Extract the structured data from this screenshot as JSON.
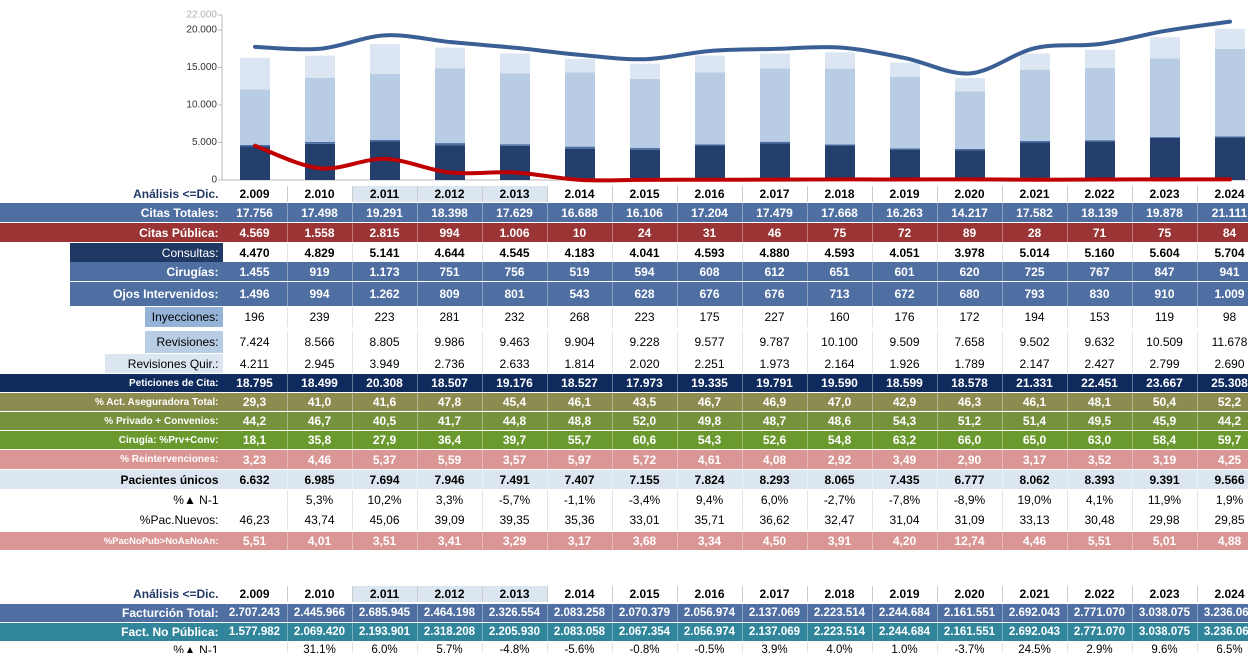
{
  "chart_data": {
    "type": "bar",
    "stacked": true,
    "ylim": [
      0,
      22000
    ],
    "yticks": [
      0,
      {
        "value": 5000,
        "label": "5.000"
      },
      {
        "value": 10000,
        "label": "10.000"
      },
      {
        "value": 15000,
        "label": "15.000"
      },
      {
        "value": 20000,
        "label": "20.000"
      },
      {
        "value": 22000,
        "label": "22.000"
      }
    ],
    "grid": false,
    "series": [
      {
        "color": "#243f6b",
        "values": [
          4470,
          4829,
          5141,
          4644,
          4545,
          4183,
          4041,
          4593,
          4880,
          4593,
          4051,
          3978,
          5014,
          5160,
          5604,
          5704
        ]
      },
      {
        "color": "#4a6ea8",
        "values": [
          196,
          239,
          223,
          281,
          232,
          268,
          223,
          175,
          227,
          160,
          176,
          172,
          194,
          153,
          119,
          98
        ]
      },
      {
        "color": "#b8cce4",
        "values": [
          7424,
          8566,
          8805,
          9986,
          9463,
          9904,
          9228,
          9577,
          9787,
          10100,
          9509,
          7658,
          9502,
          9632,
          10509,
          11678
        ]
      },
      {
        "color": "#dce6f2",
        "values": [
          4211,
          2945,
          3949,
          2736,
          2633,
          1814,
          2020,
          2251,
          1973,
          2164,
          1926,
          1789,
          2147,
          2427,
          2799,
          2690
        ]
      },
      {
        "type": "line",
        "color": "#3a5f94",
        "values": [
          17756,
          17498,
          19291,
          18398,
          17629,
          16688,
          16106,
          17204,
          17479,
          17668,
          16263,
          14217,
          17582,
          18139,
          19878,
          21111
        ]
      },
      {
        "type": "line",
        "color": "#c00000",
        "values": [
          4569,
          1558,
          2815,
          994,
          1006,
          10,
          24,
          31,
          46,
          75,
          72,
          89,
          28,
          71,
          75,
          84
        ]
      }
    ]
  },
  "table1": {
    "header": "Análisis <=Dic.",
    "years": [
      "2.009",
      "2.010",
      "2.011",
      "2.012",
      "2.013",
      "2.014",
      "2.015",
      "2.016",
      "2.017",
      "2.018",
      "2.019",
      "2.020",
      "2.021",
      "2.022",
      "2.023",
      "2.024"
    ],
    "rows": [
      {
        "label": "Citas Totales:",
        "cells": [
          "17.756",
          "17.498",
          "19.291",
          "18.398",
          "17.629",
          "16.688",
          "16.106",
          "17.204",
          "17.479",
          "17.668",
          "16.263",
          "14.217",
          "17.582",
          "18.139",
          "19.878",
          "21.111"
        ]
      },
      {
        "label": "Citas Pública:",
        "cells": [
          "4.569",
          "1.558",
          "2.815",
          "994",
          "1.006",
          "10",
          "24",
          "31",
          "46",
          "75",
          "72",
          "89",
          "28",
          "71",
          "75",
          "84"
        ]
      },
      {
        "label": "Consultas:",
        "cells": [
          "4.470",
          "4.829",
          "5.141",
          "4.644",
          "4.545",
          "4.183",
          "4.041",
          "4.593",
          "4.880",
          "4.593",
          "4.051",
          "3.978",
          "5.014",
          "5.160",
          "5.604",
          "5.704"
        ]
      },
      {
        "label": "Cirugías:",
        "cells": [
          "1.455",
          "919",
          "1.173",
          "751",
          "756",
          "519",
          "594",
          "608",
          "612",
          "651",
          "601",
          "620",
          "725",
          "767",
          "847",
          "941"
        ]
      },
      {
        "label": "Ojos Intervenidos:",
        "cells": [
          "1.496",
          "994",
          "1.262",
          "809",
          "801",
          "543",
          "628",
          "676",
          "676",
          "713",
          "672",
          "680",
          "793",
          "830",
          "910",
          "1.009"
        ]
      },
      {
        "label": "Inyecciones:",
        "cells": [
          "196",
          "239",
          "223",
          "281",
          "232",
          "268",
          "223",
          "175",
          "227",
          "160",
          "176",
          "172",
          "194",
          "153",
          "119",
          "98"
        ]
      },
      {
        "label": "Revisiones:",
        "cells": [
          "7.424",
          "8.566",
          "8.805",
          "9.986",
          "9.463",
          "9.904",
          "9.228",
          "9.577",
          "9.787",
          "10.100",
          "9.509",
          "7.658",
          "9.502",
          "9.632",
          "10.509",
          "11.678"
        ]
      },
      {
        "label": "Revisiones Quir.:",
        "cells": [
          "4.211",
          "2.945",
          "3.949",
          "2.736",
          "2.633",
          "1.814",
          "2.020",
          "2.251",
          "1.973",
          "2.164",
          "1.926",
          "1.789",
          "2.147",
          "2.427",
          "2.799",
          "2.690"
        ]
      },
      {
        "label": "Peticiones de Cita:",
        "cells": [
          "18.795",
          "18.499",
          "20.308",
          "18.507",
          "19.176",
          "18.527",
          "17.973",
          "19.335",
          "19.791",
          "19.590",
          "18.599",
          "18.578",
          "21.331",
          "22.451",
          "23.667",
          "25.308"
        ]
      },
      {
        "label": "% Act. Aseguradora Total:",
        "cells": [
          "29,3",
          "41,0",
          "41,6",
          "47,8",
          "45,4",
          "46,1",
          "43,5",
          "46,7",
          "46,9",
          "47,0",
          "42,9",
          "46,3",
          "46,1",
          "48,1",
          "50,4",
          "52,2"
        ]
      },
      {
        "label": "% Privado + Convenios:",
        "cells": [
          "44,2",
          "46,7",
          "40,5",
          "41,7",
          "44,8",
          "48,8",
          "52,0",
          "49,8",
          "48,7",
          "48,6",
          "54,3",
          "51,2",
          "51,4",
          "49,5",
          "45,9",
          "44,2"
        ]
      },
      {
        "label": "Cirugía: %Prv+Conv:",
        "cells": [
          "18,1",
          "35,8",
          "27,9",
          "36,4",
          "39,7",
          "55,7",
          "60,6",
          "54,3",
          "52,6",
          "54,8",
          "63,2",
          "66,0",
          "65,0",
          "63,0",
          "58,4",
          "59,7"
        ]
      },
      {
        "label": "% Reintervenciones:",
        "cells": [
          "3,23",
          "4,46",
          "5,37",
          "5,59",
          "3,57",
          "5,97",
          "5,72",
          "4,61",
          "4,08",
          "2,92",
          "3,49",
          "2,90",
          "3,17",
          "3,52",
          "3,19",
          "4,25"
        ]
      },
      {
        "label": "Pacientes únicos",
        "cells": [
          "6.632",
          "6.985",
          "7.694",
          "7.946",
          "7.491",
          "7.407",
          "7.155",
          "7.824",
          "8.293",
          "8.065",
          "7.435",
          "6.777",
          "8.062",
          "8.393",
          "9.391",
          "9.566"
        ]
      },
      {
        "label": "%▲ N-1",
        "cells": [
          null,
          "5,3%",
          "10,2%",
          "3,3%",
          "-5,7%",
          "-1,1%",
          "-3,4%",
          "9,4%",
          "6,0%",
          "-2,7%",
          "-7,8%",
          "-8,9%",
          "19,0%",
          "4,1%",
          "11,9%",
          "1,9%"
        ]
      },
      {
        "label": "%Pac.Nuevos:",
        "cells": [
          "46,23",
          "43,74",
          "45,06",
          "39,09",
          "39,35",
          "35,36",
          "33,01",
          "35,71",
          "36,62",
          "32,47",
          "31,04",
          "31,09",
          "33,13",
          "30,48",
          "29,98",
          "29,85"
        ]
      },
      {
        "label": "%PacNoPub>NoAsNoAn:",
        "cells": [
          "5,51",
          "4,01",
          "3,51",
          "3,41",
          "3,29",
          "3,17",
          "3,68",
          "3,34",
          "4,50",
          "3,91",
          "4,20",
          "12,74",
          "4,46",
          "5,51",
          "5,01",
          "4,88"
        ]
      }
    ]
  },
  "table2": {
    "header": "Análisis <=Dic.",
    "years": [
      "2.009",
      "2.010",
      "2.011",
      "2.012",
      "2.013",
      "2.014",
      "2.015",
      "2.016",
      "2.017",
      "2.018",
      "2.019",
      "2.020",
      "2.021",
      "2.022",
      "2.023",
      "2.024"
    ],
    "rows": [
      {
        "label": "Facturción Total:",
        "cells": [
          "2.707.243",
          "2.445.966",
          "2.685.945",
          "2.464.198",
          "2.326.554",
          "2.083.258",
          "2.070.379",
          "2.056.974",
          "2.137.069",
          "2.223.514",
          "2.244.684",
          "2.161.551",
          "2.692.043",
          "2.771.070",
          "3.038.075",
          "3.236.069"
        ]
      },
      {
        "label": "Fact. No Pública:",
        "cells": [
          "1.577.982",
          "2.069.420",
          "2.193.901",
          "2.318.208",
          "2.205.930",
          "2.083.058",
          "2.067.354",
          "2.056.974",
          "2.137.069",
          "2.223.514",
          "2.244.684",
          "2.161.551",
          "2.692.043",
          "2.771.070",
          "3.038.075",
          "3.236.069"
        ]
      },
      {
        "label": "%▲ N-1",
        "cells": [
          null,
          "31,1%",
          "6,0%",
          "5,7%",
          "-4,8%",
          "-5,6%",
          "-0,8%",
          "-0,5%",
          "3,9%",
          "4,0%",
          "1,0%",
          "-3,7%",
          "24,5%",
          "2,9%",
          "9,6%",
          "6,5%"
        ]
      }
    ]
  }
}
